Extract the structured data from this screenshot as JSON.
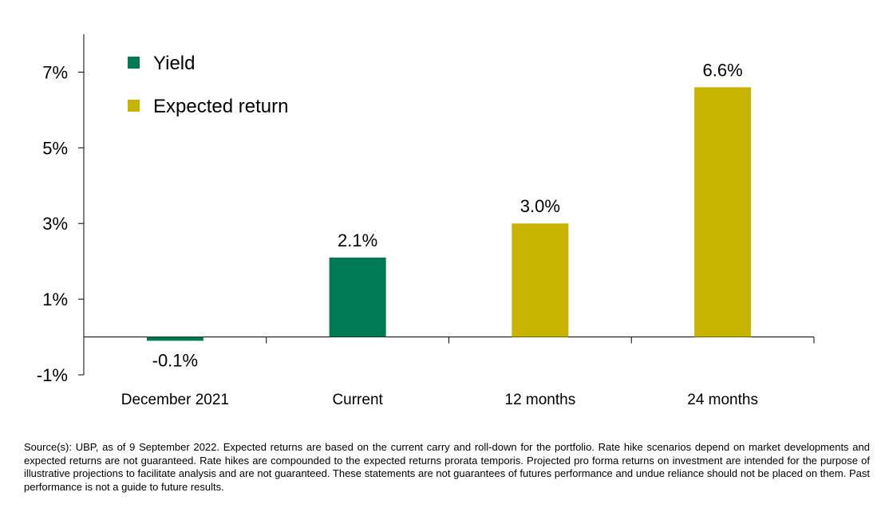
{
  "chart_data": {
    "type": "bar",
    "categories": [
      "December 2021",
      "Current",
      "12 months",
      "24 months"
    ],
    "values": [
      -0.1,
      2.1,
      3.0,
      6.6
    ],
    "data_labels": [
      "-0.1%",
      "2.1%",
      "3.0%",
      "6.6%"
    ],
    "bar_series": [
      "Yield",
      "Yield",
      "Expected return",
      "Expected return"
    ],
    "series": [
      {
        "name": "Yield",
        "color": "#007a52"
      },
      {
        "name": "Expected return",
        "color": "#c8b400"
      }
    ],
    "yticks": [
      -1,
      1,
      3,
      5,
      7
    ],
    "ytick_labels": [
      "-1%",
      "1%",
      "3%",
      "5%",
      "7%"
    ],
    "ylim": [
      -1,
      8
    ],
    "grid": false,
    "legend_position": "top-left"
  },
  "footnote": "Source(s): UBP, as of 9 September 2022. Expected returns are based on the current carry and roll-down for the portfolio. Rate hike scenarios depend on market developments and expected returns are not guaranteed. Rate hikes are compounded to the expected returns prorata temporis. Projected pro forma returns on investment are intended for the purpose of illustrative projections to facilitate analysis and are not guaranteed. These statements are not guarantees of futures performance and undue reliance should not be placed on them. Past performance is not a guide to future results."
}
